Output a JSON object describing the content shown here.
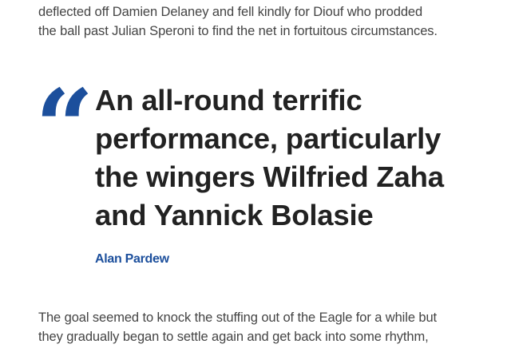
{
  "article": {
    "paragraph_top": {
      "lines": [
        "deflected off Damien Delaney and fell kindly for Diouf who prodded",
        "the ball past Julian Speroni to find the net in fortuitous circumstances."
      ]
    },
    "pull_quote": {
      "mark": "“",
      "lines": [
        "An all-round terrific",
        "performance, particularly",
        "the wingers Wilfried Zaha",
        "and Yannick Bolasie"
      ],
      "author": "Alan Pardew",
      "accent_color": "#1c4f9c"
    },
    "paragraph_bottom": {
      "lines": [
        "The goal seemed to knock the stuffing out of the Eagle for a while but",
        "they gradually began to settle again and get back into some rhythm,"
      ]
    }
  }
}
